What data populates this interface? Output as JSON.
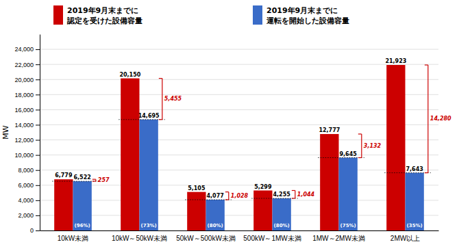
{
  "chart_data": {
    "type": "bar",
    "categories": [
      "10kW未満",
      "10kW～50kW未満",
      "50kW～500kW未満",
      "500kW～1MW未満",
      "1MW～2MW未満",
      "2MW以上"
    ],
    "series": [
      {
        "name": "2019年9月末までに\n認定を受けた設備容量",
        "color": "#CC0000",
        "values": [
          6779,
          20150,
          5105,
          5299,
          12777,
          21923
        ],
        "value_labels": [
          "6,779",
          "20,150",
          "5,105",
          "5,299",
          "12,777",
          "21,923"
        ]
      },
      {
        "name": "2019年9月末までに\n運転を開始した設備容量",
        "color": "#3A6CC8",
        "values": [
          6522,
          14695,
          4077,
          4255,
          9645,
          7643
        ],
        "value_labels": [
          "6,522",
          "14,695",
          "4,077",
          "4,255",
          "9,645",
          "7,643"
        ],
        "percentage_labels": [
          "(96%)",
          "(73%)",
          "(80%)",
          "(80%)",
          "(75%)",
          "(35%)"
        ]
      }
    ],
    "differences": [
      257,
      5455,
      1028,
      1044,
      3132,
      14280
    ],
    "difference_labels": [
      "257",
      "5,455",
      "1,028",
      "1,044",
      "3,132",
      "14,280"
    ],
    "y_label": "MW",
    "ylim": [
      0,
      26000
    ],
    "yticks": [
      0,
      {
        "value": 2000,
        "label": "2,000"
      },
      {
        "value": 4000,
        "label": "4,000"
      },
      {
        "value": 6000,
        "label": "6,000"
      },
      {
        "value": 8000,
        "label": "8,000"
      },
      {
        "value": 10000,
        "label": "10,000"
      },
      {
        "value": 12000,
        "label": "12,000"
      },
      {
        "value": 14000,
        "label": "14,000"
      },
      {
        "value": 16000,
        "label": "16,000"
      },
      {
        "value": 18000,
        "label": "18,000"
      },
      {
        "value": 20000,
        "label": "20,000"
      },
      {
        "value": 22000,
        "label": "22,000"
      },
      {
        "value": 24000,
        "label": "24,000"
      }
    ],
    "grid": true,
    "data_labels": true,
    "legend": "top"
  }
}
